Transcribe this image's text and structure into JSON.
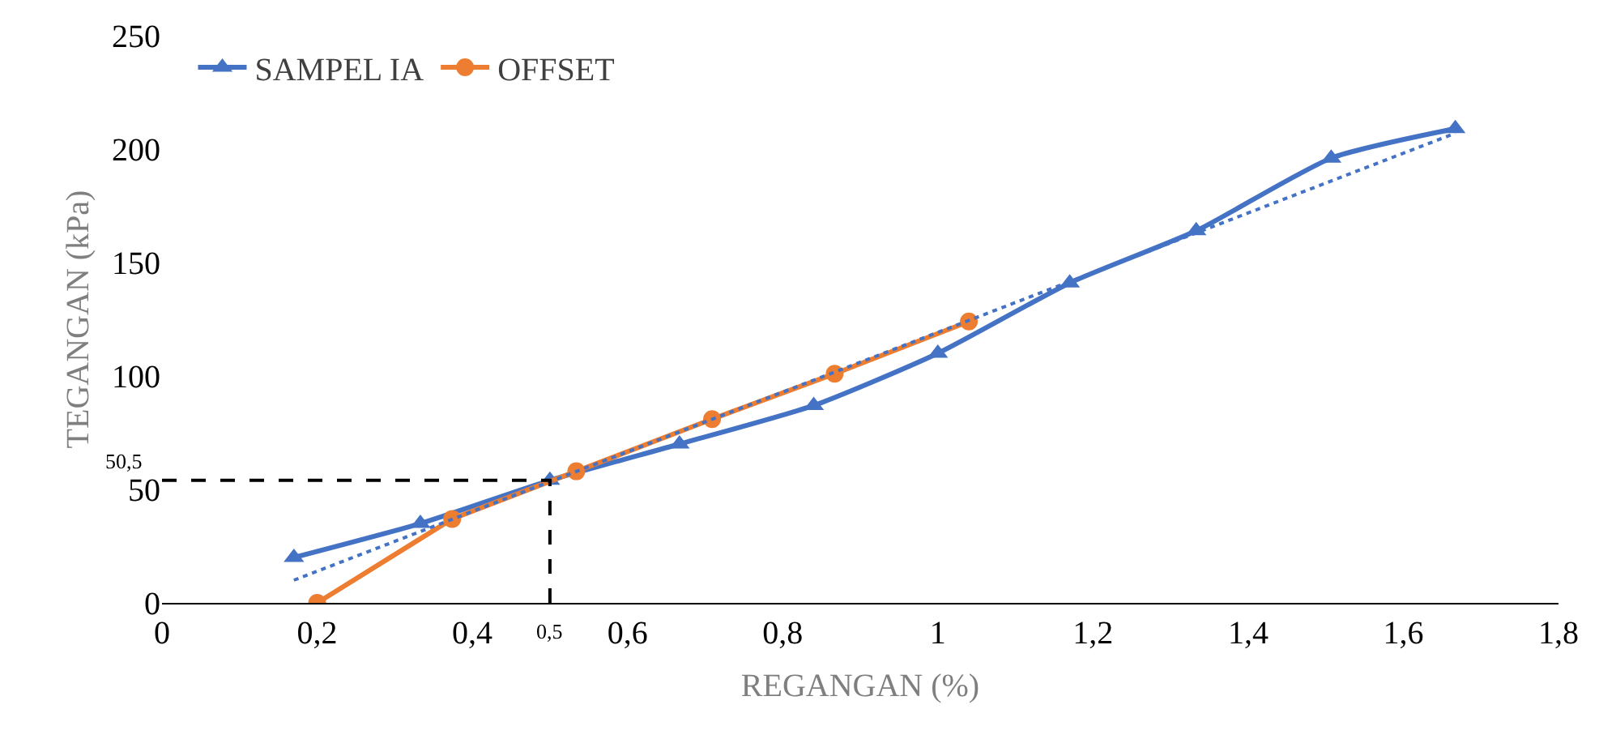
{
  "chart_data": {
    "type": "line",
    "xlabel": "REGANGAN (%)",
    "ylabel": "TEGANGAN (kPa)",
    "xlim": [
      0,
      1.8
    ],
    "ylim": [
      0,
      250
    ],
    "xticks": [
      0,
      {
        "value": 0.2,
        "label": "0,2"
      },
      {
        "value": 0.4,
        "label": "0,4"
      },
      {
        "value": 0.6,
        "label": "0,6"
      },
      {
        "value": 0.8,
        "label": "0,8"
      },
      1,
      {
        "value": 1.2,
        "label": "1,2"
      },
      {
        "value": 1.4,
        "label": "1,4"
      },
      {
        "value": 1.6,
        "label": "1,6"
      },
      {
        "value": 1.8,
        "label": "1,8"
      }
    ],
    "yticks": [
      0,
      50,
      100,
      150,
      200,
      250
    ],
    "grid": false,
    "legend": "top left",
    "series": [
      {
        "name": "SAMPEL IA",
        "color": "#4472c4",
        "marker": "triangle",
        "line_style": "solid",
        "x": [
          0.17,
          0.333,
          0.5,
          0.667,
          0.84,
          1.0,
          1.17,
          1.333,
          1.507,
          1.667
        ],
        "values": [
          20,
          35,
          54,
          70,
          87,
          110,
          141,
          164,
          196,
          209
        ]
      },
      {
        "name": "OFFSET",
        "color": "#ed7d31",
        "marker": "circle",
        "line_style": "solid",
        "x": [
          0.2,
          0.374,
          0.534,
          0.709,
          0.867,
          1.04
        ],
        "values": [
          0,
          37,
          58,
          81,
          101,
          124
        ]
      },
      {
        "color": "#4472c4",
        "marker": "none",
        "line_style": "dotted",
        "x": [
          0.17,
          1.667
        ],
        "values": [
          10,
          207
        ]
      },
      {
        "color": "#000000",
        "marker": "none",
        "line_style": "dashed",
        "x": [
          0,
          0.5,
          0.5
        ],
        "values": [
          54,
          54,
          0
        ]
      }
    ],
    "annotations": [
      {
        "text": "50,5",
        "x": 0,
        "y": 54
      },
      {
        "text": "0,5",
        "x": 0.5,
        "y": 0
      }
    ]
  }
}
